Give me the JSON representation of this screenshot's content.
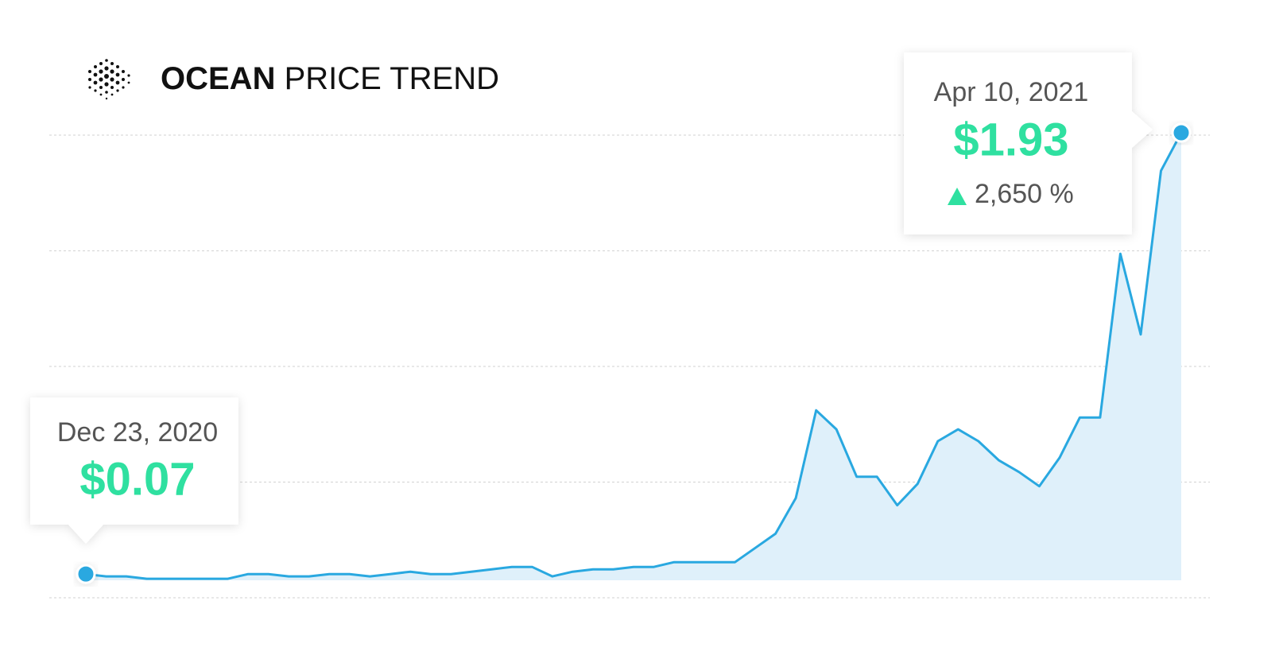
{
  "chart_data": {
    "type": "area",
    "title": {
      "coin": "OCEAN",
      "text": "PRICE TREND"
    },
    "color": "#29a8e0",
    "fill": "#dff0fa",
    "values": [
      0.07,
      0.06,
      0.06,
      0.05,
      0.05,
      0.05,
      0.05,
      0.05,
      0.07,
      0.07,
      0.06,
      0.06,
      0.07,
      0.07,
      0.06,
      0.07,
      0.08,
      0.07,
      0.07,
      0.08,
      0.09,
      0.1,
      0.1,
      0.06,
      0.08,
      0.09,
      0.09,
      0.1,
      0.1,
      0.12,
      0.12,
      0.12,
      0.12,
      0.18,
      0.24,
      0.39,
      0.76,
      0.68,
      0.48,
      0.48,
      0.36,
      0.45,
      0.63,
      0.68,
      0.63,
      0.55,
      0.5,
      0.44,
      0.56,
      0.73,
      0.73,
      1.42,
      1.08,
      1.77,
      1.93
    ],
    "ylim": [
      -0.03,
      1.92
    ],
    "grid": true,
    "annotations": [
      {
        "date": "Dec 23, 2020",
        "value": 0.07,
        "label": "$0.07"
      },
      {
        "date": "Apr 10, 2021",
        "value": 1.93,
        "label": "$1.93",
        "change": 2650,
        "change_label": "2,650 %"
      }
    ]
  }
}
